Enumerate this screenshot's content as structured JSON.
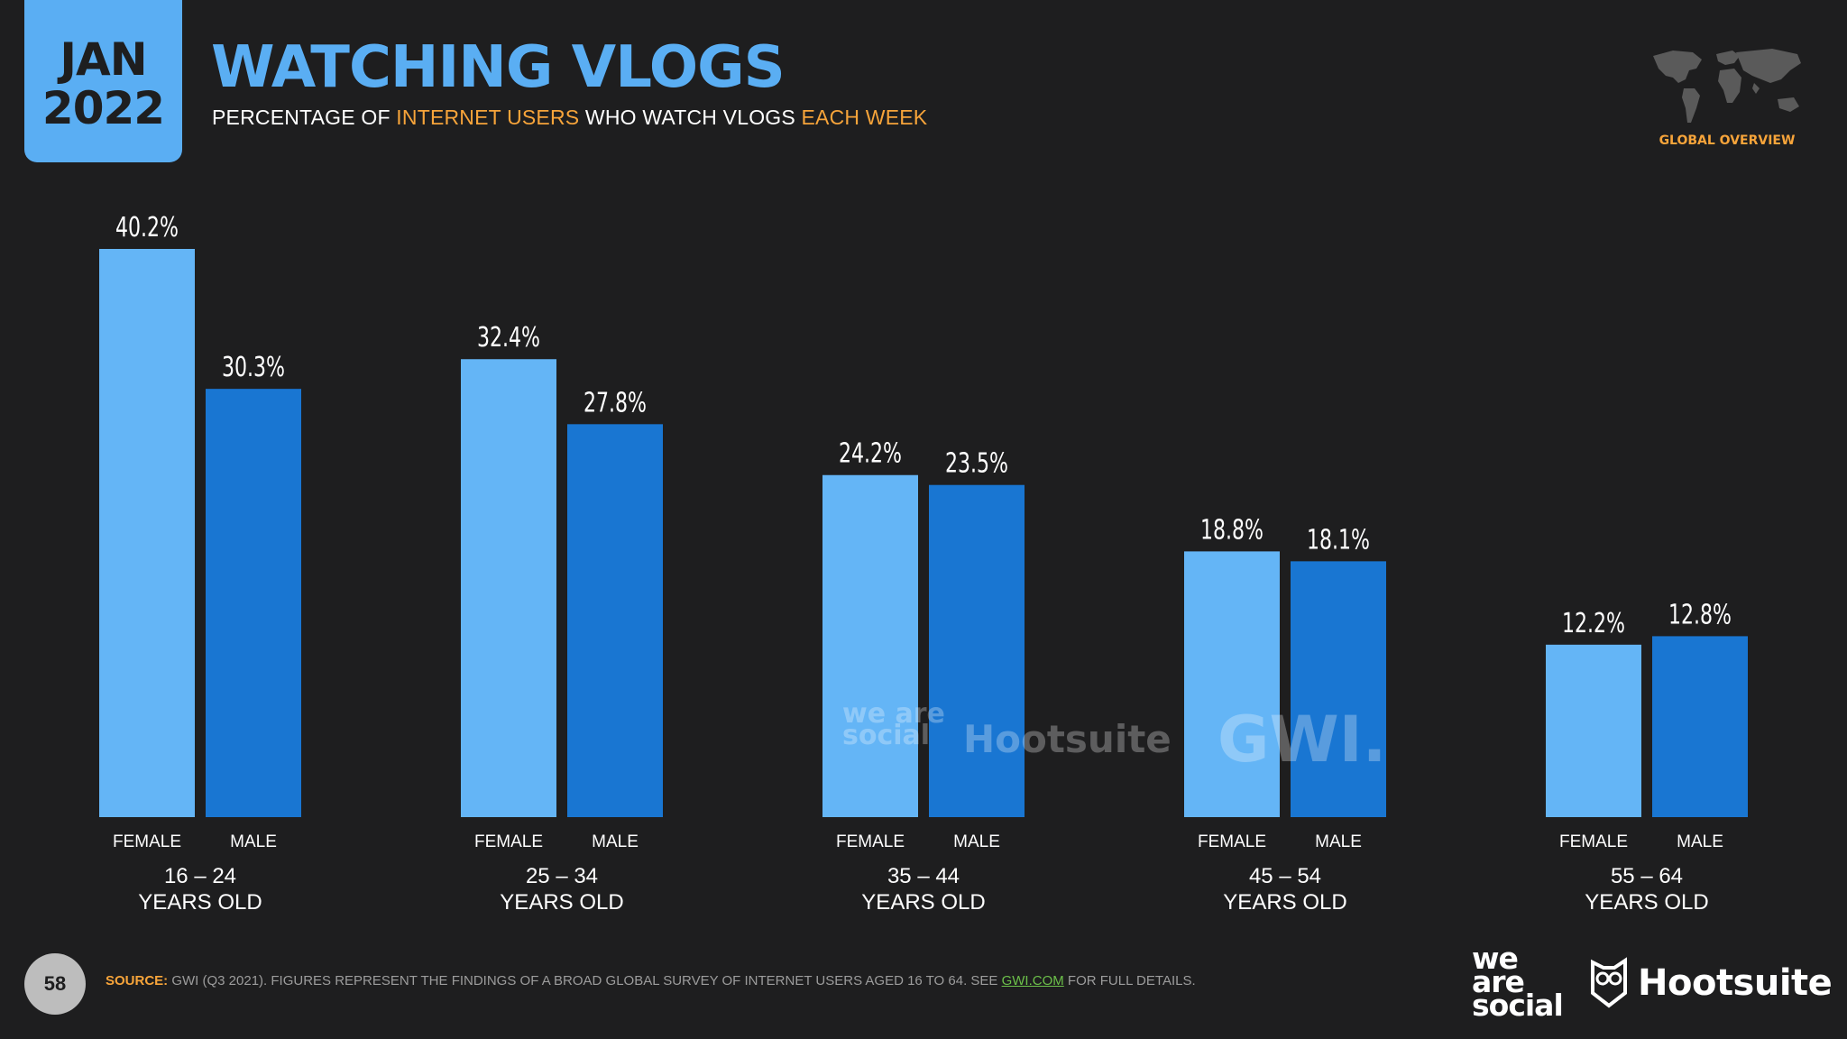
{
  "header": {
    "month": "JAN",
    "year": "2022",
    "title": "WATCHING VLOGS",
    "subtitle": {
      "part1": "PERCENTAGE OF ",
      "highlight1": "INTERNET USERS",
      "part2": " WHO WATCH VLOGS ",
      "highlight2": "EACH WEEK"
    },
    "global_label": "GLOBAL OVERVIEW"
  },
  "colors": {
    "background": "#1e1e1f",
    "female": "#64b5f6",
    "male": "#1976d2",
    "accent_orange": "#f7a43a",
    "title_blue": "#5aaef3"
  },
  "chart_data": {
    "type": "bar",
    "categories": [
      "16 – 24|YEARS OLD",
      "25 – 34|YEARS OLD",
      "35 – 44|YEARS OLD",
      "45 – 54|YEARS OLD",
      "55 – 64|YEARS OLD"
    ],
    "series": [
      {
        "name": "FEMALE",
        "values": [
          40.2,
          32.4,
          24.2,
          18.8,
          12.2
        ],
        "labels": [
          "40.2%",
          "32.4%",
          "24.2%",
          "18.8%",
          "12.2%"
        ]
      },
      {
        "name": "MALE",
        "values": [
          30.3,
          27.8,
          23.5,
          18.1,
          12.8
        ],
        "labels": [
          "30.3%",
          "27.8%",
          "23.5%",
          "18.1%",
          "12.8%"
        ]
      }
    ],
    "ylim": [
      0,
      40.2
    ],
    "grid": false
  },
  "watermark": {
    "was": "we are social",
    "hootsuite": "Hootsuite",
    "gwi": "GWI."
  },
  "footer": {
    "page_number": "58",
    "source_label": "SOURCE:",
    "source_text": " GWI (Q3 2021). FIGURES REPRESENT THE FINDINGS OF A BROAD GLOBAL SURVEY OF INTERNET USERS AGED 16 TO 64. SEE ",
    "source_link": "GWI.COM",
    "source_end": " FOR FULL DETAILS.",
    "logo_was": "we are social",
    "logo_hootsuite": "Hootsuite"
  }
}
